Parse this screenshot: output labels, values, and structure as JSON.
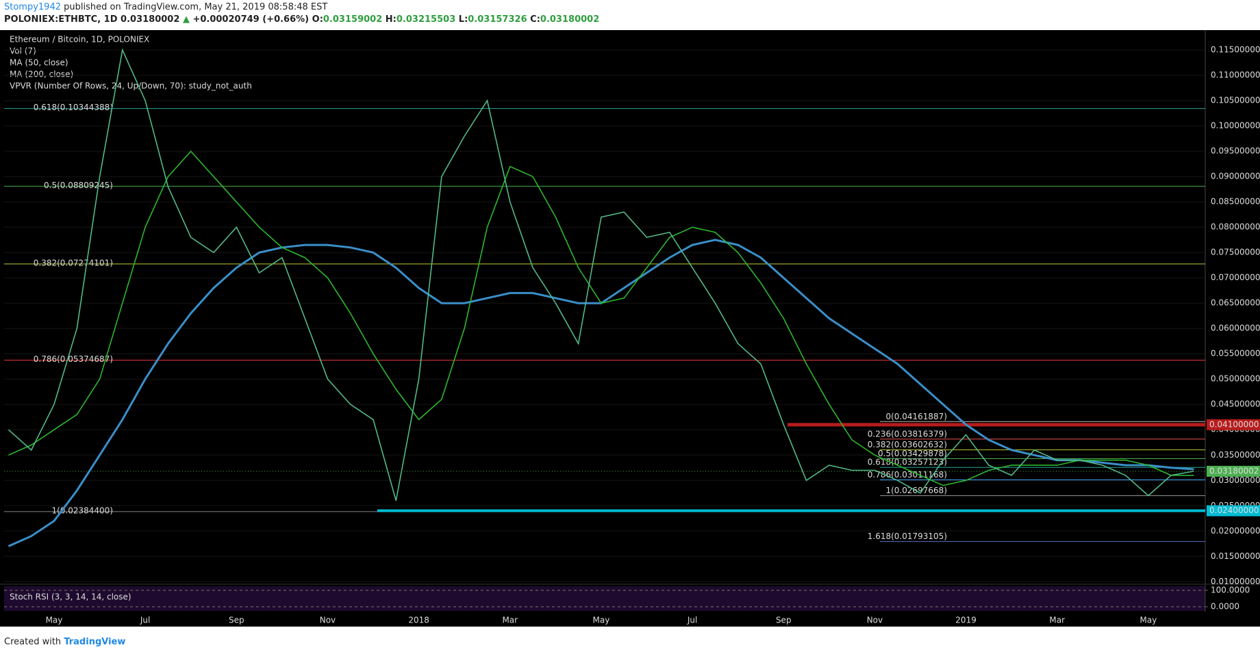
{
  "header": {
    "author": "Stompy1942",
    "published": "published on TradingView.com, May 21, 2019 08:58:48 EST",
    "symbol": "POLONIEX:ETHBTC, 1D",
    "last": "0.03180002",
    "arrow": "▲",
    "change": "+0.00020749 (+0.66%)",
    "ohlc": [
      {
        "key": "O:",
        "value": "0.03159002"
      },
      {
        "key": "H:",
        "value": "0.03215503"
      },
      {
        "key": "L:",
        "value": "0.03157326"
      },
      {
        "key": "C:",
        "value": "0.03180002"
      }
    ]
  },
  "indicators": [
    "Vol (7)",
    "VPVR (Number Of Rows, 24, Up/Down, 70): study_not_auth"
  ],
  "chart_data": {
    "type": "line",
    "ylim": [
      0.0095,
      0.1188
    ],
    "yticks": [
      {
        "value": 0.01,
        "label": "0.01000000"
      },
      {
        "value": 0.015,
        "label": "0.01500000"
      },
      {
        "value": 0.02,
        "label": "0.02000000"
      },
      {
        "value": 0.025,
        "label": "0.02500000"
      },
      {
        "value": 0.03,
        "label": "0.03000000"
      },
      {
        "value": 0.035,
        "label": "0.03500000"
      },
      {
        "value": 0.04,
        "label": "0.04000000"
      },
      {
        "value": 0.045,
        "label": "0.04500000"
      },
      {
        "value": 0.05,
        "label": "0.05000000"
      },
      {
        "value": 0.055,
        "label": "0.05500000"
      },
      {
        "value": 0.06,
        "label": "0.06000000"
      },
      {
        "value": 0.065,
        "label": "0.06500000"
      },
      {
        "value": 0.07,
        "label": "0.07000000"
      },
      {
        "value": 0.075,
        "label": "0.07500000"
      },
      {
        "value": 0.08,
        "label": "0.08000000"
      },
      {
        "value": 0.085,
        "label": "0.08500000"
      },
      {
        "value": 0.09,
        "label": "0.09000000"
      },
      {
        "value": 0.095,
        "label": "0.09500000"
      },
      {
        "value": 0.1,
        "label": "0.10000000"
      },
      {
        "value": 0.105,
        "label": "0.10500000"
      },
      {
        "value": 0.11,
        "label": "0.11000000"
      },
      {
        "value": 0.115,
        "label": "0.11500000"
      }
    ],
    "x_labels": [
      "May",
      "Jul",
      "Sep",
      "Nov",
      "2018",
      "Mar",
      "May",
      "Jul",
      "Sep",
      "Nov",
      "2019",
      "Mar",
      "May"
    ],
    "series": [
      {
        "name": "Ethereum / Bitcoin, 1D, POLONIEX",
        "color": "#53b987",
        "values": [
          0.04,
          0.036,
          0.045,
          0.06,
          0.09,
          0.115,
          0.105,
          0.088,
          0.078,
          0.075,
          0.08,
          0.071,
          0.074,
          0.062,
          0.05,
          0.045,
          0.042,
          0.026,
          0.05,
          0.09,
          0.098,
          0.105,
          0.085,
          0.072,
          0.065,
          0.057,
          0.082,
          0.083,
          0.078,
          0.079,
          0.072,
          0.065,
          0.057,
          0.053,
          0.041,
          0.03,
          0.033,
          0.032,
          0.032,
          0.03,
          0.0275,
          0.034,
          0.039,
          0.033,
          0.031,
          0.036,
          0.034,
          0.034,
          0.033,
          0.031,
          0.027,
          0.031,
          0.0318
        ]
      },
      {
        "name": "MA (50, close)",
        "color": "#2db72d",
        "values": [
          0.035,
          0.037,
          0.04,
          0.043,
          0.05,
          0.065,
          0.08,
          0.09,
          0.095,
          0.09,
          0.085,
          0.08,
          0.076,
          0.074,
          0.07,
          0.063,
          0.055,
          0.048,
          0.042,
          0.046,
          0.06,
          0.08,
          0.092,
          0.09,
          0.082,
          0.072,
          0.065,
          0.066,
          0.072,
          0.078,
          0.08,
          0.079,
          0.075,
          0.069,
          0.062,
          0.053,
          0.045,
          0.038,
          0.035,
          0.033,
          0.031,
          0.029,
          0.03,
          0.032,
          0.033,
          0.033,
          0.033,
          0.034,
          0.034,
          0.034,
          0.033,
          0.031,
          0.031
        ]
      },
      {
        "name": "MA (200, close)",
        "color": "#3a8fc9",
        "values": [
          0.017,
          0.019,
          0.022,
          0.028,
          0.035,
          0.042,
          0.05,
          0.057,
          0.063,
          0.068,
          0.072,
          0.075,
          0.076,
          0.0765,
          0.0765,
          0.076,
          0.075,
          0.072,
          0.068,
          0.065,
          0.065,
          0.066,
          0.067,
          0.067,
          0.066,
          0.065,
          0.065,
          0.068,
          0.071,
          0.074,
          0.0765,
          0.0775,
          0.0765,
          0.074,
          0.07,
          0.066,
          0.062,
          0.059,
          0.056,
          0.053,
          0.049,
          0.045,
          0.041,
          0.038,
          0.036,
          0.035,
          0.034,
          0.034,
          0.0335,
          0.033,
          0.033,
          0.0325,
          0.0322
        ]
      }
    ],
    "fib_left": [
      {
        "value": 0.10344388,
        "label": "0.618(0.10344388)",
        "color": "#26a69a"
      },
      {
        "value": 0.08809245,
        "label": "0.5(0.08809245)",
        "color": "#4caf50"
      },
      {
        "value": 0.07274101,
        "label": "0.382(0.07274101)",
        "color": "#c0ca33"
      },
      {
        "value": 0.05374687,
        "label": "0.786(0.05374687)",
        "color": "#e53935"
      },
      {
        "value": 0.023844,
        "label": "1(0.02384400)",
        "color": "#888888"
      }
    ],
    "fib_right": [
      {
        "value": 0.04161887,
        "label": "0(0.04161887)",
        "color": "#bbbbbb"
      },
      {
        "value": 0.03816379,
        "label": "0.236(0.03816379)",
        "color": "#ef5350"
      },
      {
        "value": 0.03602632,
        "label": "0.382(0.03602632)",
        "color": "#c0ca33"
      },
      {
        "value": 0.03429878,
        "label": "0.5(0.03429878)",
        "color": "#4caf50"
      },
      {
        "value": 0.03257123,
        "label": "0.618(0.03257123)",
        "color": "#26a69a"
      },
      {
        "value": 0.03011168,
        "label": "0.786(0.03011168)",
        "color": "#42a5f5"
      },
      {
        "value": 0.02697668,
        "label": "1(0.02697668)",
        "color": "#999999"
      },
      {
        "value": 0.01793105,
        "label": "1.618(0.01793105)",
        "color": "#5c6bc0"
      }
    ],
    "levels": [
      {
        "value": 0.041,
        "label": "0.04100000",
        "color": "#b71c1c"
      },
      {
        "value": 0.024,
        "label": "0.02400000",
        "color": "#00bcd4"
      },
      {
        "value": 0.03180002,
        "label": "0.03180002",
        "color": "#4caf50"
      }
    ]
  },
  "stoch": {
    "title": "Stoch RSI (3, 3, 14, 14, close)",
    "ylim": [
      0,
      100
    ],
    "yticks": [
      {
        "value": 100,
        "label": "100.0000"
      },
      {
        "value": 0,
        "label": "0.0000"
      }
    ]
  },
  "footer": {
    "text": "Created with",
    "brand": "TradingView"
  }
}
